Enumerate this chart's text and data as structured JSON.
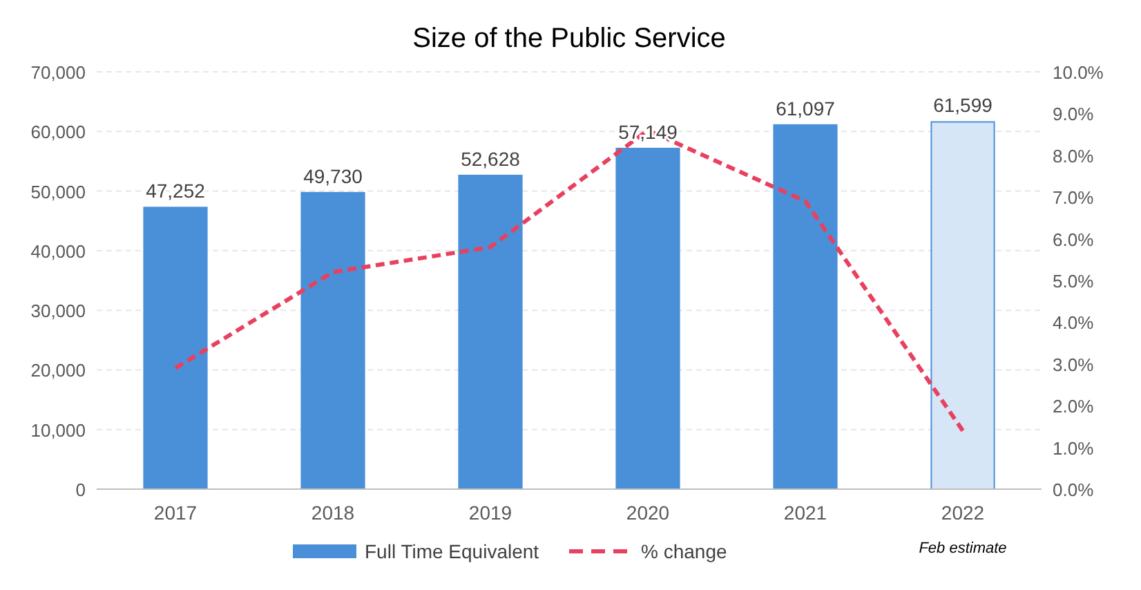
{
  "chart_data": {
    "type": "bar",
    "title": "Size of the Public Service",
    "categories": [
      "2017",
      "2018",
      "2019",
      "2020",
      "2021",
      "2022"
    ],
    "series": [
      {
        "name": "Full Time Equivalent",
        "color": "#4a90d9",
        "colors": [
          "#4a90d9",
          "#4a90d9",
          "#4a90d9",
          "#4a90d9",
          "#4a90d9",
          "#d6e6f7"
        ],
        "values": [
          47252,
          49730,
          52628,
          57149,
          61097,
          61599
        ],
        "value_labels": [
          "47,252",
          "49,730",
          "52,628",
          "57,149",
          "61,097",
          "61,599"
        ]
      },
      {
        "name": "% change",
        "type": "line",
        "axis": "y2",
        "color": "#e8415f",
        "line_style": "dashed",
        "marker": "none",
        "values": [
          2.9,
          5.2,
          5.8,
          8.6,
          6.9,
          1.4
        ]
      }
    ],
    "ylim": [
      0,
      70000
    ],
    "yticks": [
      0,
      {
        "value": 10000,
        "label": "10,000"
      },
      {
        "value": 20000,
        "label": "20,000"
      },
      {
        "value": 30000,
        "label": "30,000"
      },
      {
        "value": 40000,
        "label": "40,000"
      },
      {
        "value": 50000,
        "label": "50,000"
      },
      {
        "value": 60000,
        "label": "60,000"
      },
      {
        "value": 70000,
        "label": "70,000"
      }
    ],
    "y2lim": [
      0,
      10
    ],
    "y2ticks": [
      {
        "value": 0,
        "label": "0.0%"
      },
      {
        "value": 1,
        "label": "1.0%"
      },
      {
        "value": 2,
        "label": "2.0%"
      },
      {
        "value": 3,
        "label": "3.0%"
      },
      {
        "value": 4,
        "label": "4.0%"
      },
      {
        "value": 5,
        "label": "5.0%"
      },
      {
        "value": 6,
        "label": "6.0%"
      },
      {
        "value": 7,
        "label": "7.0%"
      },
      {
        "value": 8,
        "label": "8.0%"
      },
      {
        "value": 9,
        "label": "9.0%"
      },
      {
        "value": 10,
        "label": "10.0%"
      }
    ],
    "grid": "y",
    "legend": "bottom",
    "annotations": [
      "Feb estimate"
    ]
  }
}
